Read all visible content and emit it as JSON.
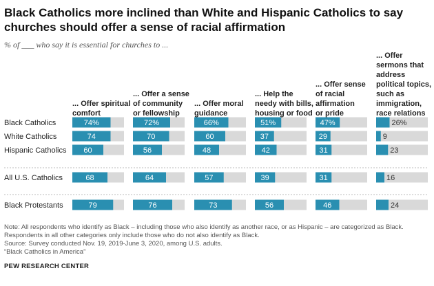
{
  "header": {
    "title": "Black Catholics more inclined than White and Hispanic Catholics to say churches should offer a sense of racial affirmation",
    "subtitle": "% of ___ who say it is essential for churches to ..."
  },
  "chart_data": {
    "type": "bar",
    "orientation": "horizontal",
    "xlim": [
      0,
      100
    ],
    "columns": [
      {
        "lines": [
          "... Offer spiritual",
          "comfort"
        ]
      },
      {
        "lines": [
          "... Offer a sense",
          "of community",
          "or fellowship"
        ]
      },
      {
        "lines": [
          "... Offer moral",
          "guidance"
        ]
      },
      {
        "lines": [
          "... Help the",
          "needy with bills,",
          "housing or food"
        ]
      },
      {
        "lines": [
          "... Offer sense",
          "of racial",
          "affirmation",
          "or pride"
        ]
      },
      {
        "lines": [
          "... Offer",
          "sermons that",
          "address",
          "political topics,",
          "such as",
          "immigration,",
          "race relations"
        ]
      }
    ],
    "rows": [
      {
        "label": "Black Catholics",
        "values": [
          74,
          72,
          66,
          51,
          47,
          26
        ],
        "value_labels": [
          "74%",
          "72%",
          "66%",
          "51%",
          "47%",
          "26%"
        ]
      },
      {
        "label": "White Catholics",
        "values": [
          74,
          70,
          60,
          37,
          29,
          9
        ],
        "value_labels": [
          "74",
          "70",
          "60",
          "37",
          "29",
          "9"
        ]
      },
      {
        "label": "Hispanic Catholics",
        "values": [
          60,
          56,
          48,
          42,
          31,
          23
        ],
        "value_labels": [
          "60",
          "56",
          "48",
          "42",
          "31",
          "23"
        ]
      },
      {
        "label": "All U.S. Catholics",
        "values": [
          68,
          64,
          57,
          39,
          31,
          16
        ],
        "value_labels": [
          "68",
          "64",
          "57",
          "39",
          "31",
          "16"
        ]
      },
      {
        "label": "Black Protestants",
        "values": [
          79,
          76,
          73,
          56,
          46,
          24
        ],
        "value_labels": [
          "79",
          "76",
          "73",
          "56",
          "46",
          "24"
        ]
      }
    ],
    "colors": {
      "bar": "#2a8fb1",
      "track": "#d9d9d9",
      "divider": "#bbbbbb"
    }
  },
  "footer": {
    "note_lines": [
      "Note: All respondents who identify as Black – including those who also identify as another race, or as Hispanic – are categorized as Black.",
      "Respondents in all other categories only include those who do not also identify as Black."
    ],
    "source": "Source: Survey conducted Nov. 19, 2019-June 3, 2020, among U.S. adults.",
    "report": "“Black Catholics in America”",
    "logo": "PEW RESEARCH CENTER"
  }
}
